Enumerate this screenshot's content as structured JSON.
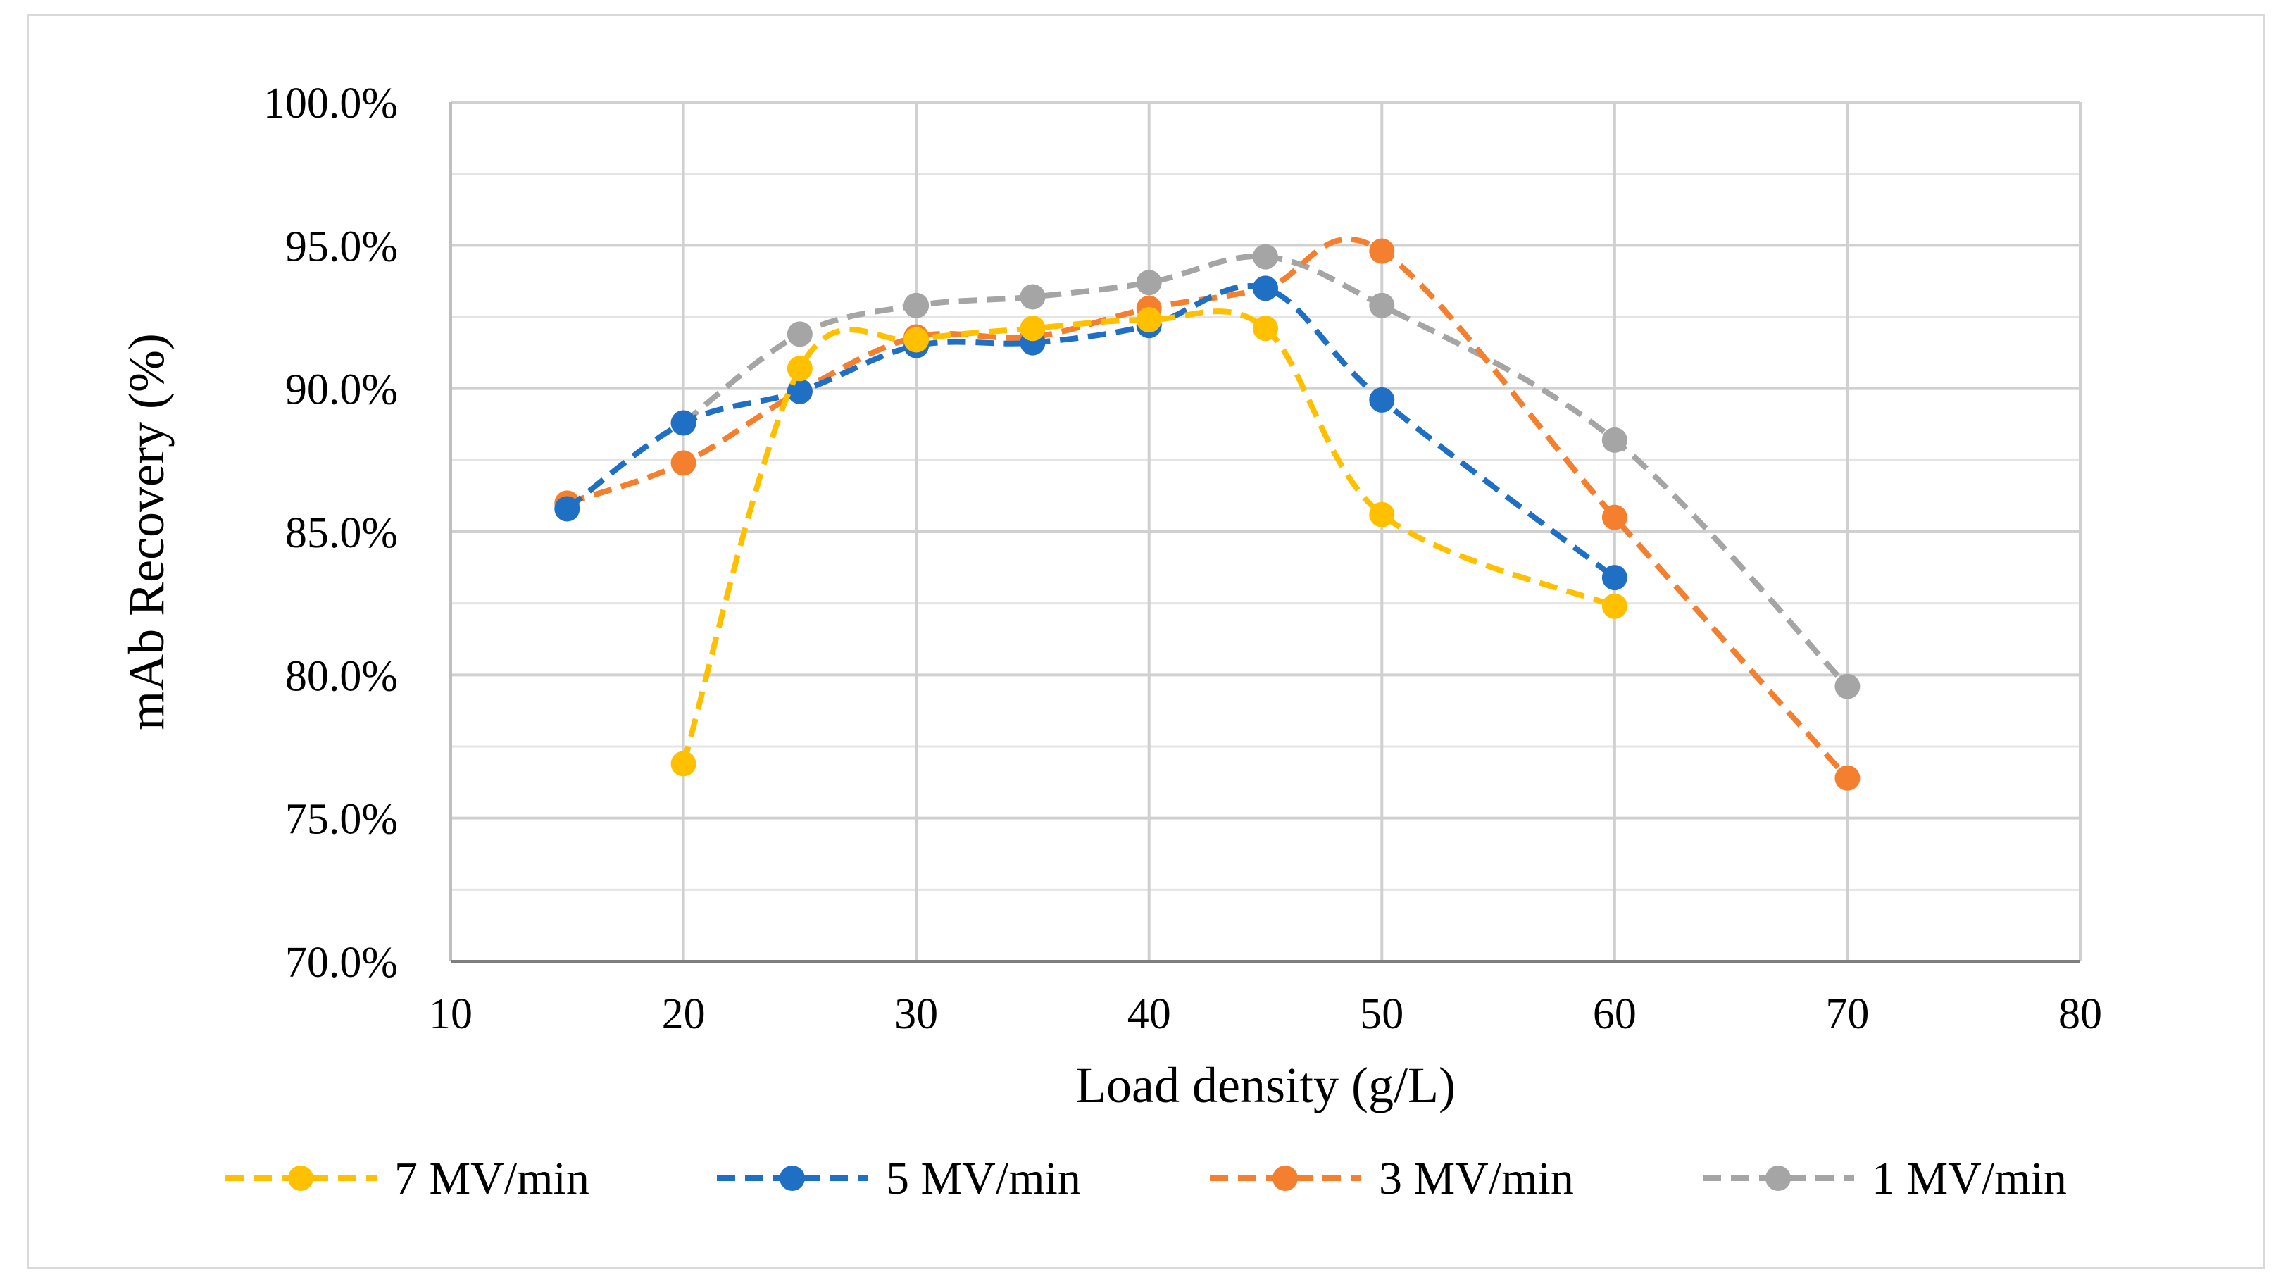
{
  "chart_data": {
    "type": "line",
    "title": "",
    "xlabel": "Load density (g/L)",
    "ylabel": "mAb Recovery (%)",
    "xlim": [
      10,
      80
    ],
    "ylim": [
      70.0,
      100.0
    ],
    "x_ticks": [
      10,
      20,
      30,
      40,
      50,
      60,
      70,
      80
    ],
    "x_tick_labels": [
      "10",
      "20",
      "30",
      "40",
      "50",
      "60",
      "70",
      "80"
    ],
    "y_ticks": [
      70,
      75,
      80,
      85,
      90,
      95,
      100
    ],
    "y_tick_labels": [
      "70.0%",
      "75.0%",
      "80.0%",
      "85.0%",
      "90.0%",
      "95.0%",
      "100.0%"
    ],
    "y_minor_gridlines": [
      72.5,
      77.5,
      82.5,
      87.5,
      92.5,
      97.5
    ],
    "grid": true,
    "legend_position": "bottom",
    "series": [
      {
        "name": "7 MV/min",
        "color": "#FFC000",
        "x": [
          20,
          25,
          30,
          35,
          40,
          45,
          50,
          60
        ],
        "values": [
          76.9,
          90.7,
          91.7,
          92.1,
          92.4,
          92.1,
          85.6,
          82.4
        ]
      },
      {
        "name": "5 MV/min",
        "color": "#1F6FC5",
        "x": [
          15,
          20,
          25,
          30,
          35,
          40,
          45,
          50,
          60
        ],
        "values": [
          85.8,
          88.8,
          89.9,
          91.5,
          91.6,
          92.2,
          93.5,
          89.6,
          83.4
        ]
      },
      {
        "name": "3 MV/min",
        "color": "#F47F2F",
        "x": [
          15,
          20,
          25,
          30,
          35,
          40,
          45,
          50,
          60,
          70
        ],
        "values": [
          86.0,
          87.4,
          89.9,
          91.8,
          91.8,
          92.8,
          93.5,
          94.8,
          85.5,
          76.4
        ]
      },
      {
        "name": "1 MV/min",
        "color": "#A5A5A5",
        "x": [
          20,
          25,
          30,
          35,
          40,
          45,
          50,
          60,
          70
        ],
        "values": [
          88.8,
          91.9,
          92.9,
          93.2,
          93.7,
          94.6,
          92.9,
          88.2,
          79.6
        ]
      }
    ]
  }
}
